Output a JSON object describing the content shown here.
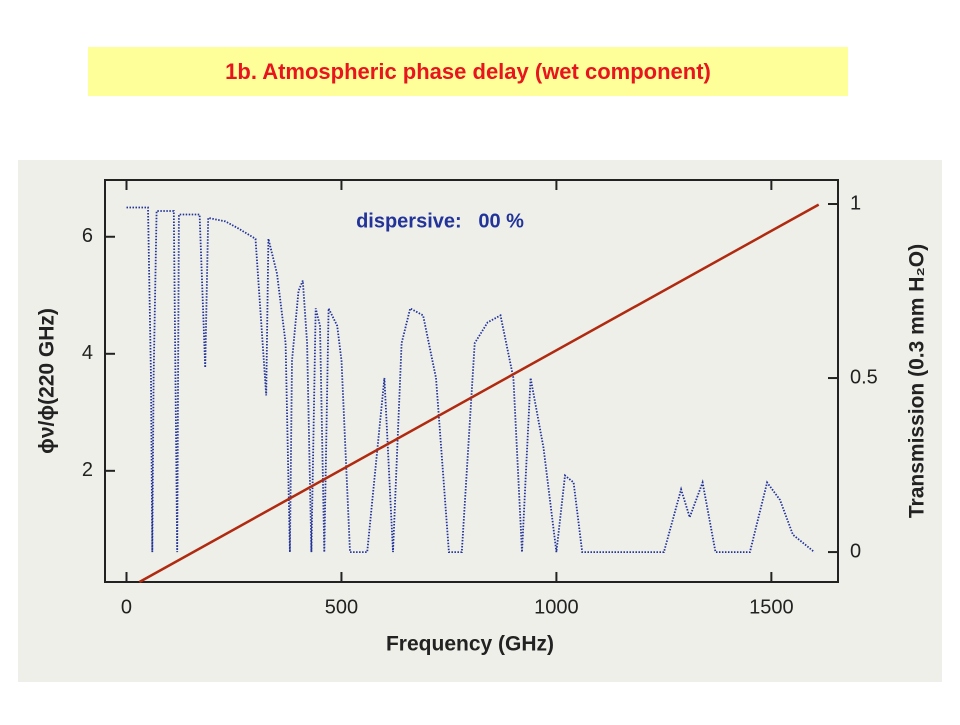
{
  "chart_data": {
    "type": "line",
    "title": "1b. Atmospheric phase delay (wet component)",
    "annotation": "dispersive:   00 %",
    "xlabel": "Frequency (GHz)",
    "ylabel": "ϕν/ϕ(220 GHz)",
    "y2label": "Transmission (0.3 mm H₂O)",
    "xlim": [
      -50,
      1655
    ],
    "xticks": [
      0,
      500,
      1000,
      1500
    ],
    "ylim": [
      0.1,
      6.97
    ],
    "yticks": [
      2,
      4,
      6
    ],
    "y2lim": [
      -0.086,
      1.069
    ],
    "y2ticks": [
      0,
      0.5,
      1
    ],
    "series": [
      {
        "color": "#223399",
        "axis": "y2",
        "style": "dotted",
        "x": [
          0,
          50,
          57,
          60,
          63,
          70,
          110,
          118,
          122,
          170,
          183,
          190,
          230,
          260,
          300,
          325,
          330,
          350,
          370,
          380,
          385,
          400,
          410,
          420,
          430,
          440,
          450,
          460,
          470,
          490,
          500,
          520,
          560,
          600,
          620,
          640,
          660,
          690,
          720,
          750,
          780,
          810,
          840,
          870,
          900,
          920,
          940,
          970,
          1000,
          1020,
          1040,
          1060,
          1250,
          1290,
          1310,
          1340,
          1370,
          1450,
          1490,
          1520,
          1550,
          1600
        ],
        "values": [
          0.99,
          0.99,
          0.5,
          0.0,
          0.5,
          0.98,
          0.98,
          0.0,
          0.97,
          0.97,
          0.53,
          0.96,
          0.95,
          0.93,
          0.9,
          0.45,
          0.9,
          0.8,
          0.6,
          0.0,
          0.55,
          0.75,
          0.78,
          0.6,
          0.0,
          0.7,
          0.65,
          0.0,
          0.7,
          0.65,
          0.55,
          0.0,
          0.0,
          0.5,
          0.0,
          0.6,
          0.7,
          0.68,
          0.5,
          0.0,
          0.0,
          0.6,
          0.66,
          0.68,
          0.5,
          0.0,
          0.5,
          0.3,
          0.0,
          0.22,
          0.2,
          0.0,
          0.0,
          0.18,
          0.1,
          0.2,
          0.0,
          0.0,
          0.2,
          0.15,
          0.05,
          0.0
        ]
      },
      {
        "color": "#b02a10",
        "axis": "y",
        "style": "solid",
        "x": [
          30,
          1610
        ],
        "values": [
          0.1,
          6.55
        ]
      }
    ]
  }
}
